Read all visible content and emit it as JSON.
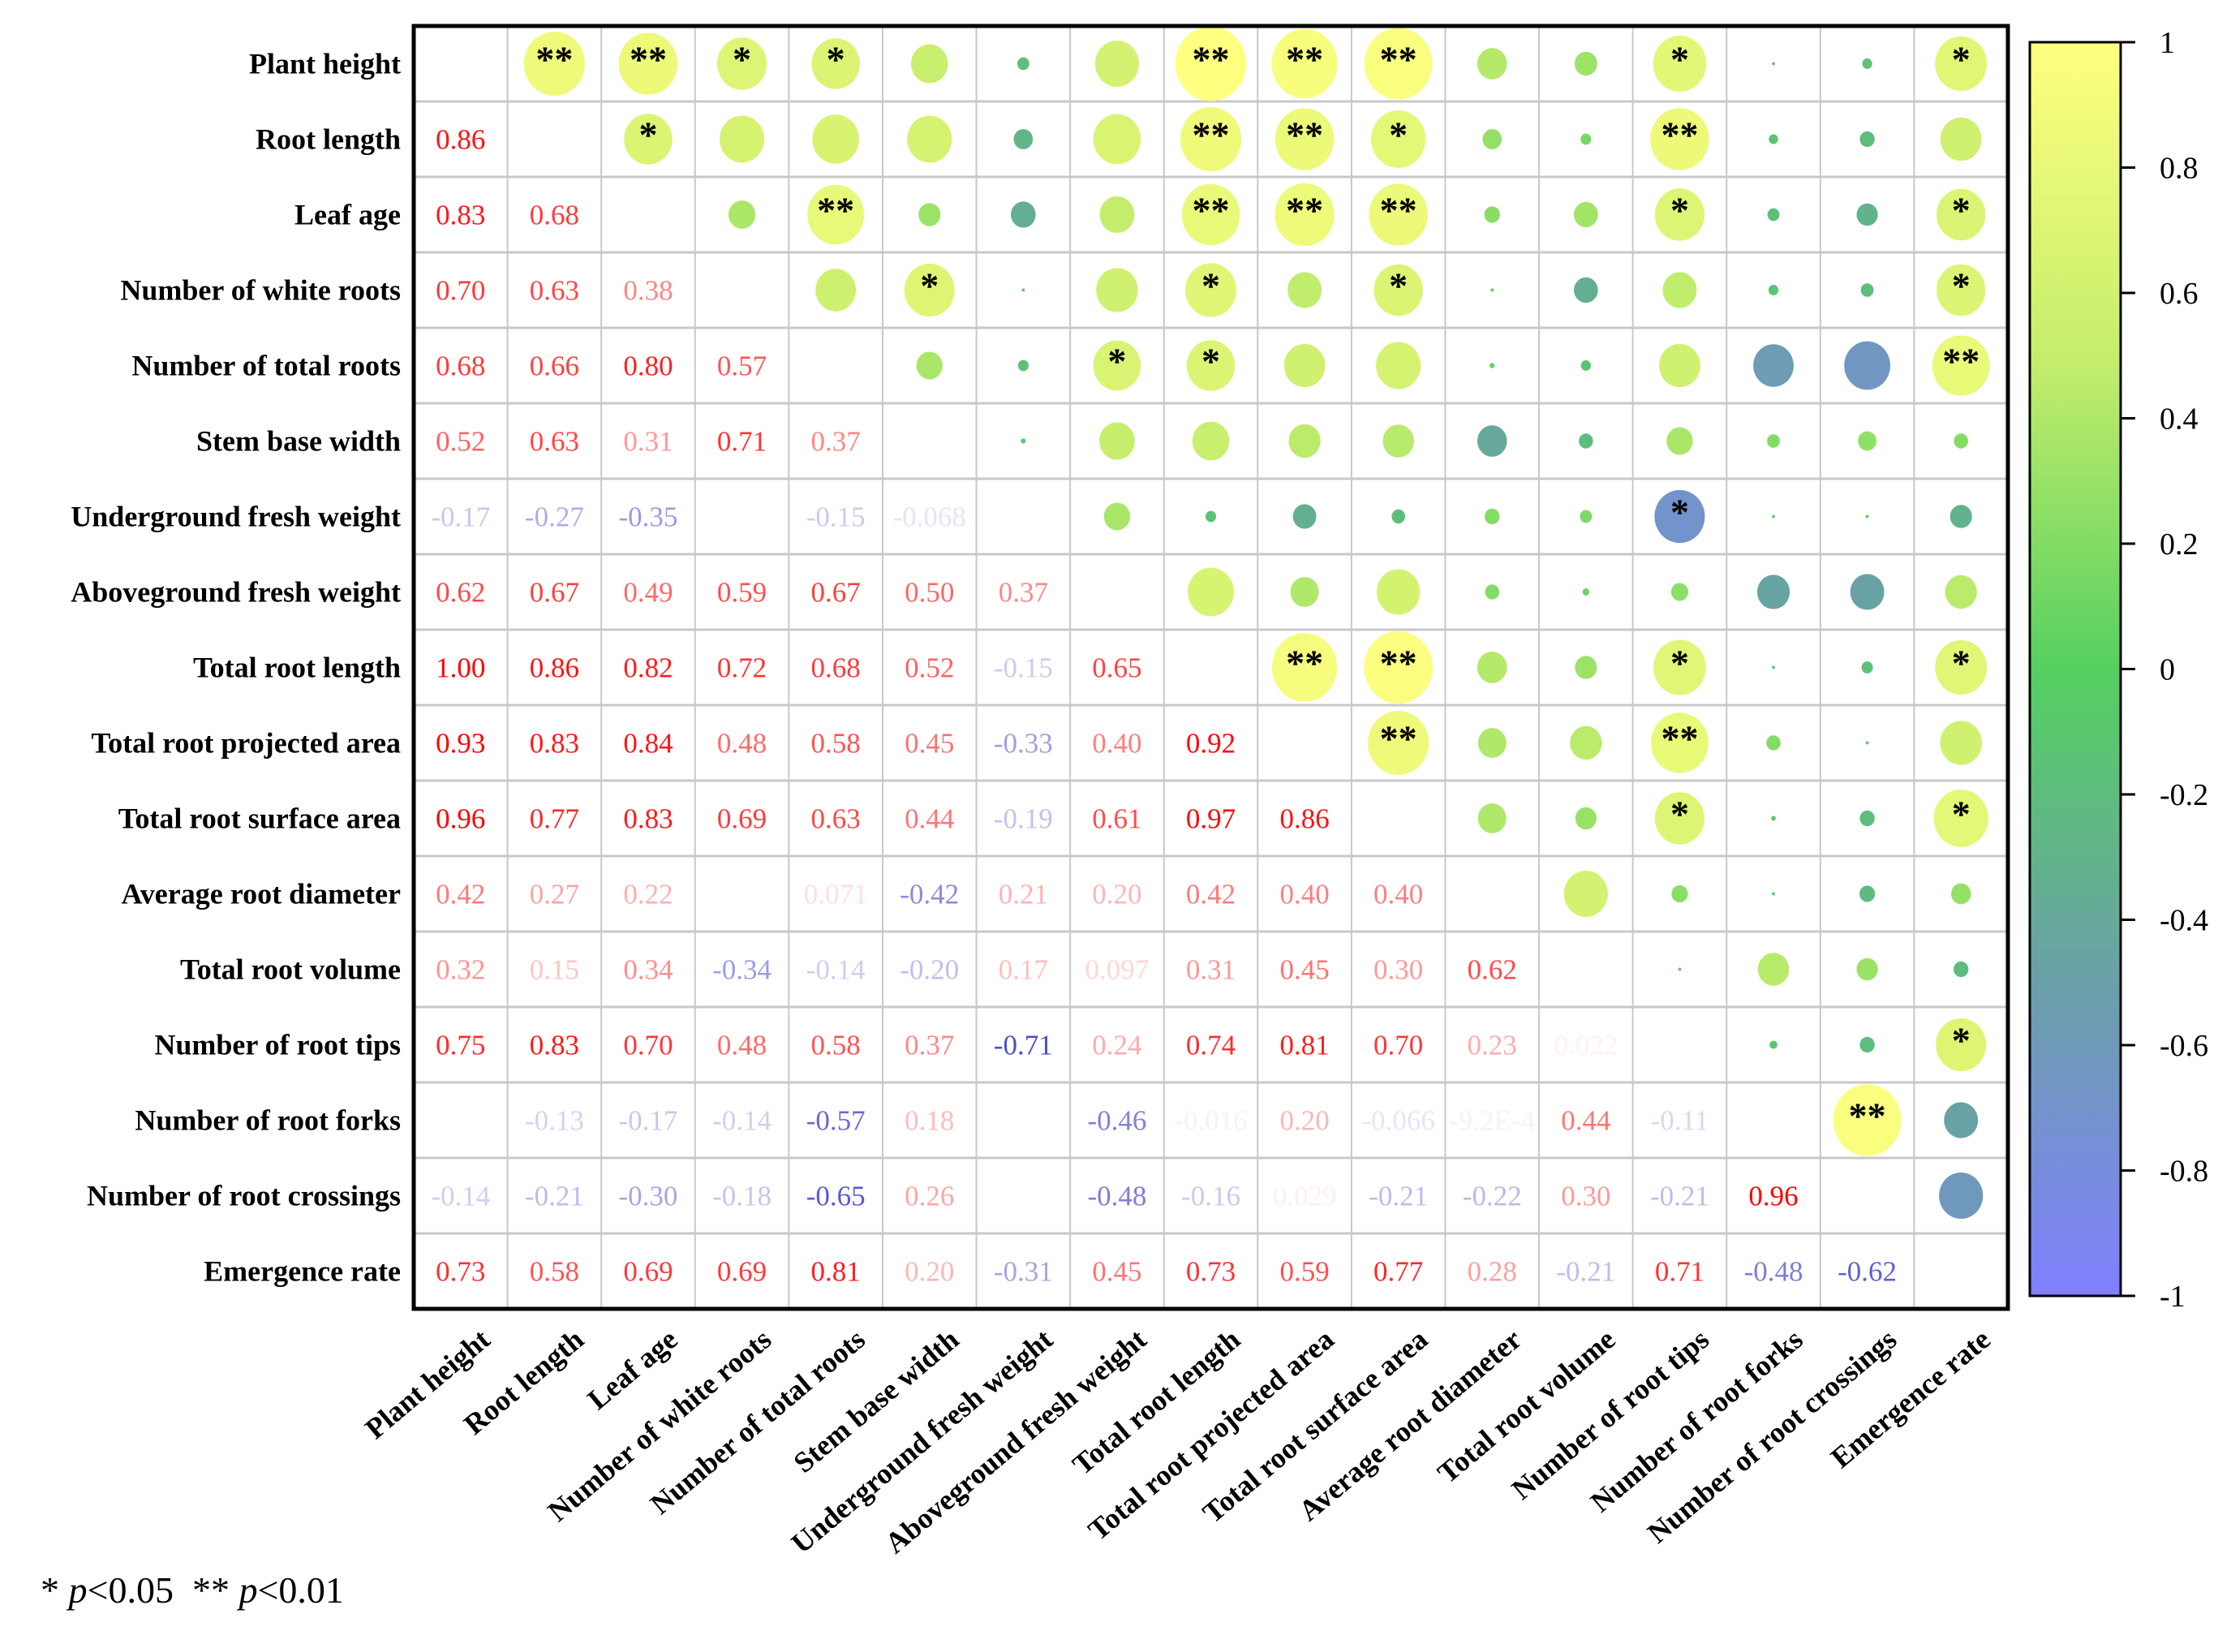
{
  "chart_data": {
    "type": "heatmap",
    "subtype": "correlation-matrix",
    "labels": [
      "Plant height",
      "Root length",
      "Leaf age",
      "Number of white roots",
      "Number of total roots",
      "Stem base width",
      "Underground fresh weight",
      "Aboveground fresh weight",
      "Total root length",
      "Total root projected area",
      "Total root surface area",
      "Average root diameter",
      "Total root volume",
      "Number of root tips",
      "Number of root forks",
      "Number of root crossings",
      "Emergence rate"
    ],
    "lower_triangle": [
      [],
      [
        0.86
      ],
      [
        0.83,
        0.68
      ],
      [
        0.7,
        0.63,
        0.38
      ],
      [
        0.68,
        0.66,
        0.8,
        0.57
      ],
      [
        0.52,
        0.63,
        0.31,
        0.71,
        0.37
      ],
      [
        -0.17,
        -0.27,
        -0.35,
        null,
        -0.15,
        -0.068
      ],
      [
        0.62,
        0.67,
        0.49,
        0.59,
        0.67,
        0.5,
        0.37
      ],
      [
        1.0,
        0.86,
        0.82,
        0.72,
        0.68,
        0.52,
        -0.15,
        0.65
      ],
      [
        0.93,
        0.83,
        0.84,
        0.48,
        0.58,
        0.45,
        -0.33,
        0.4,
        0.92
      ],
      [
        0.96,
        0.77,
        0.83,
        0.69,
        0.63,
        0.44,
        -0.19,
        0.61,
        0.97,
        0.86
      ],
      [
        0.42,
        0.27,
        0.22,
        null,
        0.071,
        -0.42,
        0.21,
        0.2,
        0.42,
        0.4,
        0.4
      ],
      [
        0.32,
        0.15,
        0.34,
        -0.34,
        -0.14,
        -0.2,
        0.17,
        0.097,
        0.31,
        0.45,
        0.3,
        0.62
      ],
      [
        0.75,
        0.83,
        0.7,
        0.48,
        0.58,
        0.37,
        -0.71,
        0.24,
        0.74,
        0.81,
        0.7,
        0.23,
        0.022
      ],
      [
        null,
        -0.13,
        -0.17,
        -0.14,
        -0.57,
        0.18,
        null,
        -0.46,
        -0.016,
        0.2,
        -0.066,
        "-9.2E-4",
        0.44,
        -0.11
      ],
      [
        -0.14,
        -0.21,
        -0.3,
        -0.18,
        -0.65,
        0.26,
        null,
        -0.48,
        -0.16,
        0.029,
        -0.21,
        -0.22,
        0.3,
        -0.21,
        0.96
      ],
      [
        0.73,
        0.58,
        0.69,
        0.69,
        0.81,
        0.2,
        -0.31,
        0.45,
        0.73,
        0.59,
        0.77,
        0.28,
        -0.21,
        0.71,
        -0.48,
        -0.62
      ]
    ],
    "significance_upper": [
      [
        "",
        "**",
        "**",
        "*",
        "*",
        "",
        "",
        "",
        "**",
        "**",
        "**",
        "",
        "",
        "*",
        "",
        "",
        "*"
      ],
      [
        "",
        "",
        "*",
        "",
        "",
        "",
        "",
        "",
        "**",
        "**",
        "*",
        "",
        "",
        "**",
        "",
        "",
        ""
      ],
      [
        "",
        "",
        "",
        "",
        "**",
        "",
        "",
        "",
        "**",
        "**",
        "**",
        "",
        "",
        "*",
        "",
        "",
        "*"
      ],
      [
        "",
        "",
        "",
        "",
        "",
        "*",
        "",
        "",
        "*",
        "",
        "*",
        "",
        "",
        "",
        "",
        "",
        "*"
      ],
      [
        "",
        "",
        "",
        "",
        "",
        "",
        "",
        "*",
        "*",
        "",
        "",
        "",
        "",
        "",
        "",
        "",
        "**"
      ],
      [
        "",
        "",
        "",
        "",
        "",
        "",
        "",
        "",
        "",
        "",
        "",
        "",
        "",
        "",
        "",
        "",
        ""
      ],
      [
        "",
        "",
        "",
        "",
        "",
        "",
        "",
        "",
        "",
        "",
        "",
        "",
        "",
        "*",
        "",
        "",
        ""
      ],
      [
        "",
        "",
        "",
        "",
        "",
        "",
        "",
        "",
        "",
        "",
        "",
        "",
        "",
        "",
        "",
        "",
        ""
      ],
      [
        "",
        "",
        "",
        "",
        "",
        "",
        "",
        "",
        "",
        "**",
        "**",
        "",
        "",
        "*",
        "",
        "",
        "*"
      ],
      [
        "",
        "",
        "",
        "",
        "",
        "",
        "",
        "",
        "",
        "",
        "**",
        "",
        "",
        "**",
        "",
        "",
        ""
      ],
      [
        "",
        "",
        "",
        "",
        "",
        "",
        "",
        "",
        "",
        "",
        "",
        "",
        "",
        "*",
        "",
        "",
        "*"
      ],
      [
        "",
        "",
        "",
        "",
        "",
        "",
        "",
        "",
        "",
        "",
        "",
        "",
        "",
        "",
        "",
        "",
        ""
      ],
      [
        "",
        "",
        "",
        "",
        "",
        "",
        "",
        "",
        "",
        "",
        "",
        "",
        "",
        "",
        "",
        "",
        ""
      ],
      [
        "",
        "",
        "",
        "",
        "",
        "",
        "",
        "",
        "",
        "",
        "",
        "",
        "",
        "",
        "",
        "",
        "*"
      ],
      [
        "",
        "",
        "",
        "",
        "",
        "",
        "",
        "",
        "",
        "",
        "",
        "",
        "",
        "",
        "",
        "**",
        ""
      ],
      [
        "",
        "",
        "",
        "",
        "",
        "",
        "",
        "",
        "",
        "",
        "",
        "",
        "",
        "",
        "",
        "",
        ""
      ],
      [
        "",
        "",
        "",
        "",
        "",
        "",
        "",
        "",
        "",
        "",
        "",
        "",
        "",
        "",
        "",
        "",
        ""
      ]
    ],
    "colorbar": {
      "range": [
        -1,
        1
      ],
      "ticks": [
        "1",
        "0.8",
        "0.6",
        "0.4",
        "0.2",
        "0",
        "-0.2",
        "-0.4",
        "-0.6",
        "-0.8",
        "-1"
      ]
    },
    "colors": {
      "pos1": "#ffff80",
      "pos05": "#c6ee6c",
      "zero": "#55d060",
      "neg05": "#6aa0a8",
      "neg1": "#8080ff",
      "text_pos": "#ff0000",
      "text_neg": "#2020c0"
    },
    "legend_note": {
      "one_star": "* ",
      "p1": "p",
      "lt1": "<0.05",
      "two_star": "  ** ",
      "p2": "p",
      "lt2": "<0.01"
    }
  }
}
